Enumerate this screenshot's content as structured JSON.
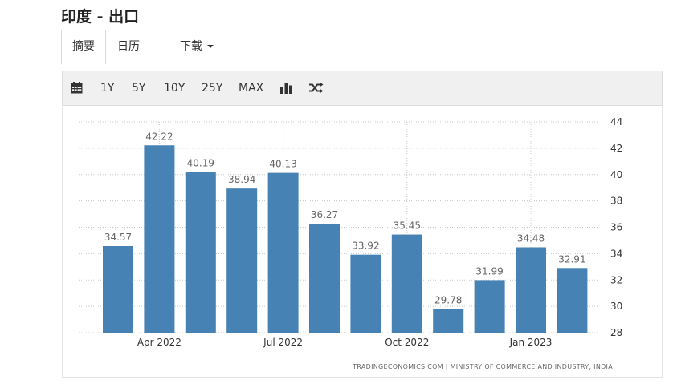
{
  "page": {
    "title": "印度 - 出口"
  },
  "tabs": {
    "summary": "摘要",
    "calendar": "日历",
    "download": "下载"
  },
  "toolbar": {
    "ranges": [
      "1Y",
      "5Y",
      "10Y",
      "25Y",
      "MAX"
    ],
    "icons": [
      "calendar-icon",
      "bar-chart-icon",
      "shuffle-icon"
    ]
  },
  "chart_data": {
    "type": "bar",
    "categories": [
      "Mar 2022",
      "Apr 2022",
      "May 2022",
      "Jun 2022",
      "Jul 2022",
      "Aug 2022",
      "Sep 2022",
      "Oct 2022",
      "Nov 2022",
      "Dec 2022",
      "Jan 2023",
      "Feb 2023"
    ],
    "values": [
      34.57,
      42.22,
      40.19,
      38.94,
      40.13,
      36.27,
      33.92,
      35.45,
      29.78,
      31.99,
      34.48,
      32.91
    ],
    "x_tick_labels": [
      "Apr 2022",
      "Jul 2022",
      "Oct 2022",
      "Jan 2023"
    ],
    "y_ticks": [
      28,
      30,
      32,
      34,
      36,
      38,
      40,
      42,
      44
    ],
    "ylim": [
      28,
      44
    ],
    "y_axis_position": "right",
    "bar_color": "#4682b4",
    "grid": true,
    "source": "TRADINGECONOMICS.COM | MINISTRY OF COMMERCE AND INDUSTRY, INDIA"
  }
}
